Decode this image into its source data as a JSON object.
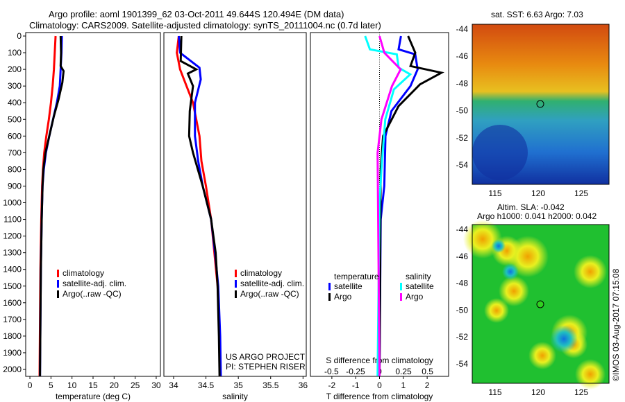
{
  "title": {
    "line1": "Argo profile: aoml 1901399_62 03-Oct-2011 49.644S 120.494E (DM data)",
    "line2": "Climatology: CARS2009. Satellite-adjusted climatology: synTS_20111004.nc (0.7d later)"
  },
  "colors": {
    "climatology": "#ff0000",
    "satellite": "#0000ff",
    "argo": "#000000",
    "sal_satellite": "#00ffff",
    "sal_argo": "#ff00ff"
  },
  "chart_data": [
    {
      "type": "line",
      "xlabel": "temperature (deg C)",
      "ylabel": "",
      "xlim": [
        -1,
        31
      ],
      "ylim": [
        2050,
        0
      ],
      "xticks": [
        0,
        5,
        10,
        15,
        20,
        25,
        30
      ],
      "yticks": [
        0,
        100,
        200,
        300,
        400,
        500,
        600,
        700,
        800,
        900,
        1000,
        1100,
        1200,
        1300,
        1400,
        1500,
        1600,
        1700,
        1800,
        1900,
        2000
      ],
      "legend": [
        "climatology",
        "satellite-adj. clim.",
        "Argo(..raw -QC)"
      ],
      "series": [
        {
          "name": "climatology",
          "color": "#ff0000",
          "points": [
            [
              6.1,
              0
            ],
            [
              5.9,
              100
            ],
            [
              5.7,
              200
            ],
            [
              5.4,
              300
            ],
            [
              5.0,
              400
            ],
            [
              4.5,
              500
            ],
            [
              3.9,
              600
            ],
            [
              3.4,
              700
            ],
            [
              3.1,
              800
            ],
            [
              2.9,
              900
            ],
            [
              2.7,
              1100
            ],
            [
              2.5,
              1400
            ],
            [
              2.4,
              1700
            ],
            [
              2.3,
              2040
            ]
          ]
        },
        {
          "name": "satellite-adj. clim.",
          "color": "#0000ff",
          "points": [
            [
              7.6,
              0
            ],
            [
              7.5,
              100
            ],
            [
              7.3,
              200
            ],
            [
              7.1,
              300
            ],
            [
              6.4,
              400
            ],
            [
              5.5,
              500
            ],
            [
              4.6,
              600
            ],
            [
              3.8,
              700
            ],
            [
              3.3,
              800
            ],
            [
              3.0,
              900
            ],
            [
              2.8,
              1100
            ],
            [
              2.6,
              1400
            ],
            [
              2.5,
              1700
            ],
            [
              2.4,
              2040
            ]
          ]
        },
        {
          "name": "Argo(..raw -QC)",
          "color": "#000000",
          "points": [
            [
              7.3,
              0
            ],
            [
              7.4,
              100
            ],
            [
              7.3,
              180
            ],
            [
              8.0,
              210
            ],
            [
              7.7,
              280
            ],
            [
              6.8,
              380
            ],
            [
              5.7,
              480
            ],
            [
              4.6,
              600
            ],
            [
              3.7,
              700
            ],
            [
              3.2,
              800
            ],
            [
              3.0,
              900
            ],
            [
              2.8,
              1100
            ],
            [
              2.6,
              1400
            ],
            [
              2.5,
              1700
            ],
            [
              2.4,
              2040
            ]
          ]
        }
      ]
    },
    {
      "type": "line",
      "xlabel": "salinity",
      "xlim": [
        33.85,
        36.05
      ],
      "ylim": [
        2050,
        0
      ],
      "xticks": [
        34,
        34.5,
        35,
        35.5,
        36
      ],
      "legend": [
        "climatology",
        "satellite-adj. clim.",
        "Argo(..raw -QC)"
      ],
      "credit": [
        "US ARGO PROJECT",
        "PI: STEPHEN RISER"
      ],
      "series": [
        {
          "name": "climatology",
          "color": "#ff0000",
          "points": [
            [
              34.08,
              0
            ],
            [
              34.05,
              100
            ],
            [
              34.1,
              200
            ],
            [
              34.2,
              300
            ],
            [
              34.3,
              400
            ],
            [
              34.35,
              500
            ],
            [
              34.4,
              600
            ],
            [
              34.43,
              750
            ],
            [
              34.5,
              900
            ],
            [
              34.58,
              1100
            ],
            [
              34.63,
              1300
            ],
            [
              34.68,
              1500
            ],
            [
              34.71,
              1800
            ],
            [
              34.72,
              2040
            ]
          ]
        },
        {
          "name": "satellite-adj. clim.",
          "color": "#0000ff",
          "points": [
            [
              34.08,
              0
            ],
            [
              34.1,
              100
            ],
            [
              34.4,
              190
            ],
            [
              34.42,
              260
            ],
            [
              34.33,
              400
            ],
            [
              34.33,
              600
            ],
            [
              34.38,
              750
            ],
            [
              34.45,
              900
            ],
            [
              34.58,
              1100
            ],
            [
              34.64,
              1300
            ],
            [
              34.69,
              1500
            ],
            [
              34.72,
              1800
            ],
            [
              34.73,
              2040
            ]
          ]
        },
        {
          "name": "Argo(..raw -QC)",
          "color": "#000000",
          "points": [
            [
              34.12,
              0
            ],
            [
              34.11,
              150
            ],
            [
              34.35,
              200
            ],
            [
              34.22,
              225
            ],
            [
              34.3,
              300
            ],
            [
              34.25,
              450
            ],
            [
              34.24,
              600
            ],
            [
              34.3,
              700
            ],
            [
              34.45,
              900
            ],
            [
              34.58,
              1100
            ],
            [
              34.65,
              1300
            ],
            [
              34.68,
              1500
            ],
            [
              34.7,
              1800
            ],
            [
              34.71,
              2040
            ]
          ]
        }
      ]
    },
    {
      "type": "line",
      "xlabel": "T difference from climatology",
      "x2label": "S difference from climatology",
      "xlim": [
        -2.9,
        2.9
      ],
      "x2lim": [
        -0.72,
        0.72
      ],
      "ylim": [
        2050,
        0
      ],
      "xticks": [
        -2,
        -1,
        0,
        1,
        2
      ],
      "x2ticks": [
        "-0.5",
        "-0.25",
        "0",
        "0.25",
        "0.5"
      ],
      "legend": {
        "temperature": "temperature",
        "salinity": "salinity",
        "items": [
          "satellite",
          "Argo",
          "satellite",
          "Argo"
        ]
      },
      "series": [
        {
          "name": "T satellite",
          "color": "#0000ff",
          "axis": "T",
          "points": [
            [
              0.9,
              0
            ],
            [
              0.8,
              80
            ],
            [
              1.5,
              110
            ],
            [
              1.6,
              200
            ],
            [
              1.3,
              300
            ],
            [
              0.5,
              450
            ],
            [
              0.25,
              600
            ],
            [
              0.2,
              900
            ],
            [
              0.05,
              1100
            ],
            [
              0,
              2040
            ]
          ]
        },
        {
          "name": "T Argo",
          "color": "#000000",
          "axis": "T",
          "points": [
            [
              1.2,
              0
            ],
            [
              1.5,
              100
            ],
            [
              1.3,
              180
            ],
            [
              2.6,
              220
            ],
            [
              1.7,
              290
            ],
            [
              0.8,
              420
            ],
            [
              0.15,
              600
            ],
            [
              0.05,
              800
            ],
            [
              0,
              2040
            ]
          ]
        },
        {
          "name": "S satellite",
          "color": "#00ffff",
          "axis": "S",
          "points": [
            [
              -0.15,
              0
            ],
            [
              -0.1,
              80
            ],
            [
              0.18,
              110
            ],
            [
              0.2,
              190
            ],
            [
              0.32,
              230
            ],
            [
              0.15,
              320
            ],
            [
              0.06,
              500
            ],
            [
              0.02,
              800
            ],
            [
              0,
              1000
            ],
            [
              -0.02,
              2040
            ]
          ]
        },
        {
          "name": "S Argo",
          "color": "#ff00ff",
          "axis": "S",
          "points": [
            [
              0,
              0
            ],
            [
              0.05,
              100
            ],
            [
              0.22,
              200
            ],
            [
              0.13,
              300
            ],
            [
              0.02,
              500
            ],
            [
              -0.02,
              700
            ],
            [
              0,
              2040
            ]
          ]
        }
      ]
    }
  ],
  "maps": [
    {
      "title": "sat. SST: 6.63 Argo: 7.03",
      "yticks": [
        "-44",
        "-46",
        "-48",
        "-50",
        "-52",
        "-54"
      ],
      "xticks": [
        "115",
        "120",
        "125"
      ]
    },
    {
      "title1": "Altim. SLA: -0.042",
      "title2": "Argo h1000: 0.041 h2000: 0.042",
      "yticks": [
        "-44",
        "-46",
        "-48",
        "-50",
        "-52",
        "-54"
      ],
      "xticks": [
        "115",
        "120",
        "125"
      ],
      "credit": "©IMOS 03-Aug-2017 07:15:08"
    }
  ]
}
